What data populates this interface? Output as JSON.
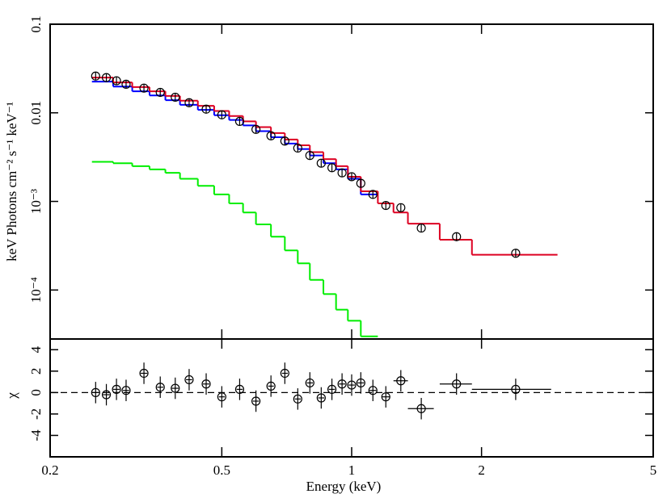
{
  "chart_data": [
    {
      "type": "scatter",
      "ylabel": "keV Photons cm⁻² s⁻¹ keV⁻¹",
      "log_x": true,
      "log_y": true,
      "xlim": [
        0.2,
        5
      ],
      "ylim": [
        2.8e-05,
        0.1
      ],
      "yticks": [
        0.1,
        0.01,
        {
          "value": 0.001,
          "label": "10⁻³"
        },
        {
          "value": 0.0001,
          "label": "10⁻⁴"
        }
      ],
      "series": [
        {
          "color": "#000000",
          "x": [
            0.255,
            0.27,
            0.285,
            0.3,
            0.33,
            0.36,
            0.39,
            0.42,
            0.46,
            0.5,
            0.55,
            0.6,
            0.65,
            0.7,
            0.75,
            0.8,
            0.85,
            0.9,
            0.95,
            1.0,
            1.05,
            1.12,
            1.2,
            1.3,
            1.45,
            1.75,
            2.4
          ],
          "values": [
            0.026,
            0.025,
            0.023,
            0.021,
            0.019,
            0.017,
            0.015,
            0.013,
            0.011,
            0.0095,
            0.008,
            0.0065,
            0.0055,
            0.0048,
            0.004,
            0.0033,
            0.0027,
            0.0024,
            0.0021,
            0.0019,
            0.0016,
            0.0012,
            0.0009,
            0.00085,
            0.0005,
            0.0004,
            0.00026
          ]
        }
      ],
      "models": [
        {
          "color": "#0000ff",
          "bins": [
            0.25,
            0.28,
            0.31,
            0.34,
            0.37,
            0.4,
            0.44,
            0.48,
            0.52,
            0.56,
            0.6,
            0.65,
            0.7,
            0.75,
            0.8,
            0.86,
            0.92,
            0.98,
            1.05,
            1.15
          ],
          "values": [
            0.0225,
            0.0198,
            0.0175,
            0.0157,
            0.0139,
            0.0123,
            0.0108,
            0.0094,
            0.0083,
            0.0072,
            0.0062,
            0.0053,
            0.0045,
            0.0039,
            0.0033,
            0.0027,
            0.0023,
            0.0018,
            0.0012
          ]
        },
        {
          "color": "#00ee00",
          "bins": [
            0.25,
            0.28,
            0.31,
            0.34,
            0.37,
            0.4,
            0.44,
            0.48,
            0.52,
            0.56,
            0.6,
            0.65,
            0.7,
            0.75,
            0.8,
            0.86,
            0.92,
            0.98,
            1.05,
            1.15
          ],
          "values": [
            0.0028,
            0.0027,
            0.0025,
            0.0023,
            0.0021,
            0.0018,
            0.0015,
            0.0012,
            0.00095,
            0.00075,
            0.00055,
            0.0004,
            0.00028,
            0.0002,
            0.00013,
            9e-05,
            6e-05,
            4.5e-05,
            3e-05
          ]
        },
        {
          "color": "#dd0022",
          "bins": [
            0.25,
            0.28,
            0.31,
            0.34,
            0.37,
            0.4,
            0.44,
            0.48,
            0.52,
            0.56,
            0.6,
            0.65,
            0.7,
            0.75,
            0.8,
            0.86,
            0.92,
            0.98,
            1.05,
            1.15,
            1.25,
            1.35,
            1.6,
            1.9,
            3.0
          ],
          "values": [
            0.025,
            0.022,
            0.0195,
            0.0175,
            0.0155,
            0.0137,
            0.012,
            0.0105,
            0.0092,
            0.008,
            0.0069,
            0.0059,
            0.005,
            0.0043,
            0.0036,
            0.003,
            0.0025,
            0.0019,
            0.0013,
            0.00095,
            0.00075,
            0.00056,
            0.00037,
            0.00025
          ]
        }
      ]
    },
    {
      "type": "scatter",
      "xlabel": "Energy (keV)",
      "ylabel": "χ",
      "log_x": true,
      "xlim": [
        0.2,
        5
      ],
      "xticks": [
        0.2,
        0.5,
        1,
        2,
        5
      ],
      "ylim": [
        -6,
        5
      ],
      "yticks": [
        -4,
        -2,
        0,
        2,
        4
      ],
      "series": [
        {
          "color": "#000000",
          "x": [
            0.255,
            0.27,
            0.285,
            0.3,
            0.33,
            0.36,
            0.39,
            0.42,
            0.46,
            0.5,
            0.55,
            0.6,
            0.65,
            0.7,
            0.75,
            0.8,
            0.85,
            0.9,
            0.95,
            1.0,
            1.05,
            1.12,
            1.2,
            1.3,
            1.45,
            1.75,
            2.4
          ],
          "xerr": [
            0.005,
            0.005,
            0.005,
            0.005,
            0.006,
            0.006,
            0.007,
            0.007,
            0.008,
            0.008,
            0.009,
            0.01,
            0.01,
            0.011,
            0.012,
            0.013,
            0.014,
            0.015,
            0.016,
            0.017,
            0.018,
            0.02,
            0.025,
            0.05,
            0.1,
            0.15,
            0.5
          ],
          "values": [
            0.0,
            -0.2,
            0.3,
            0.2,
            1.8,
            0.5,
            0.4,
            1.2,
            0.8,
            -0.4,
            0.3,
            -0.8,
            0.6,
            1.8,
            -0.6,
            0.9,
            -0.5,
            0.3,
            0.8,
            0.7,
            0.9,
            0.2,
            -0.4,
            1.1,
            -1.5,
            0.8,
            0.3
          ],
          "yerr": [
            1,
            1,
            1,
            1,
            1,
            1,
            1,
            1,
            1,
            1,
            1,
            1,
            1,
            1,
            1,
            1,
            1,
            1,
            1,
            1,
            1,
            1,
            1,
            1,
            1,
            1,
            1
          ]
        }
      ]
    }
  ]
}
